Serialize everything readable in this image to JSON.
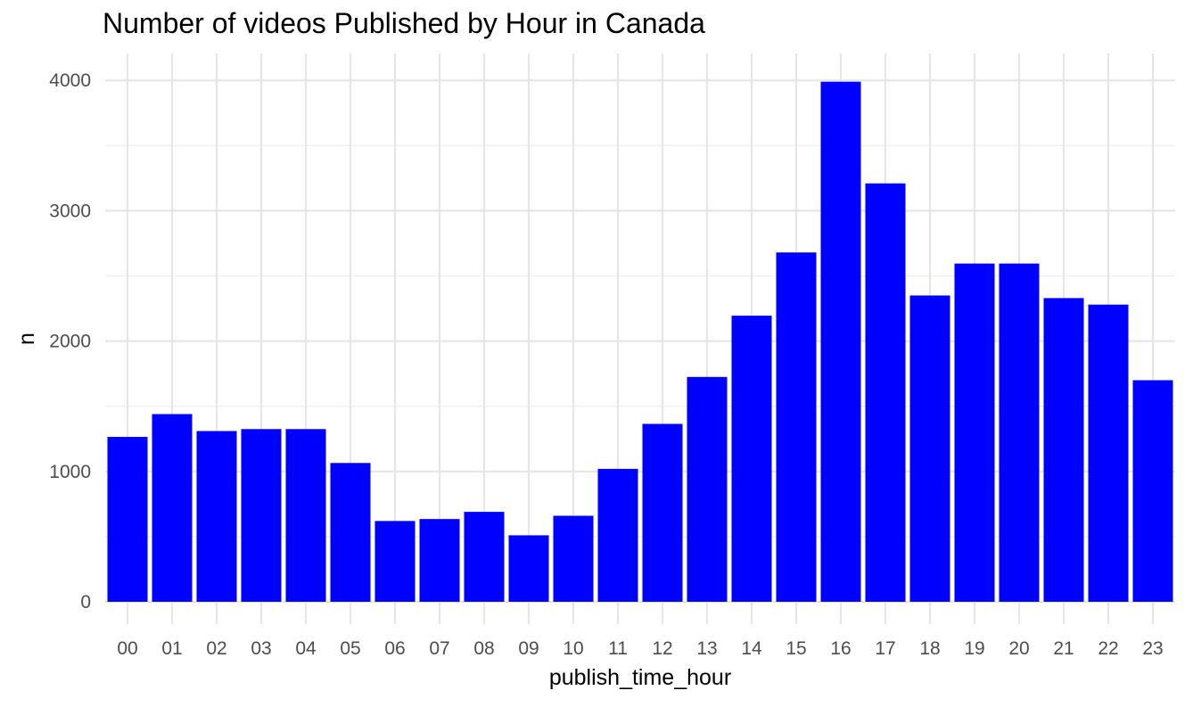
{
  "chart_data": {
    "type": "bar",
    "title": "Number of videos Published by Hour in Canada",
    "xlabel": "publish_time_hour",
    "ylabel": "n",
    "categories": [
      "00",
      "01",
      "02",
      "03",
      "04",
      "05",
      "06",
      "07",
      "08",
      "09",
      "10",
      "11",
      "12",
      "13",
      "14",
      "15",
      "16",
      "17",
      "18",
      "19",
      "20",
      "21",
      "22",
      "23"
    ],
    "values": [
      1265,
      1440,
      1310,
      1325,
      1325,
      1065,
      620,
      635,
      690,
      510,
      660,
      1020,
      1365,
      1725,
      2195,
      2680,
      3990,
      3210,
      2350,
      2595,
      2595,
      2330,
      2280,
      1700
    ],
    "ylim": [
      0,
      4200
    ],
    "yticks": [
      "0",
      "1000",
      "2000",
      "3000",
      "4000"
    ],
    "bar_color": "#0000ff",
    "grid": true,
    "legend": "none"
  }
}
